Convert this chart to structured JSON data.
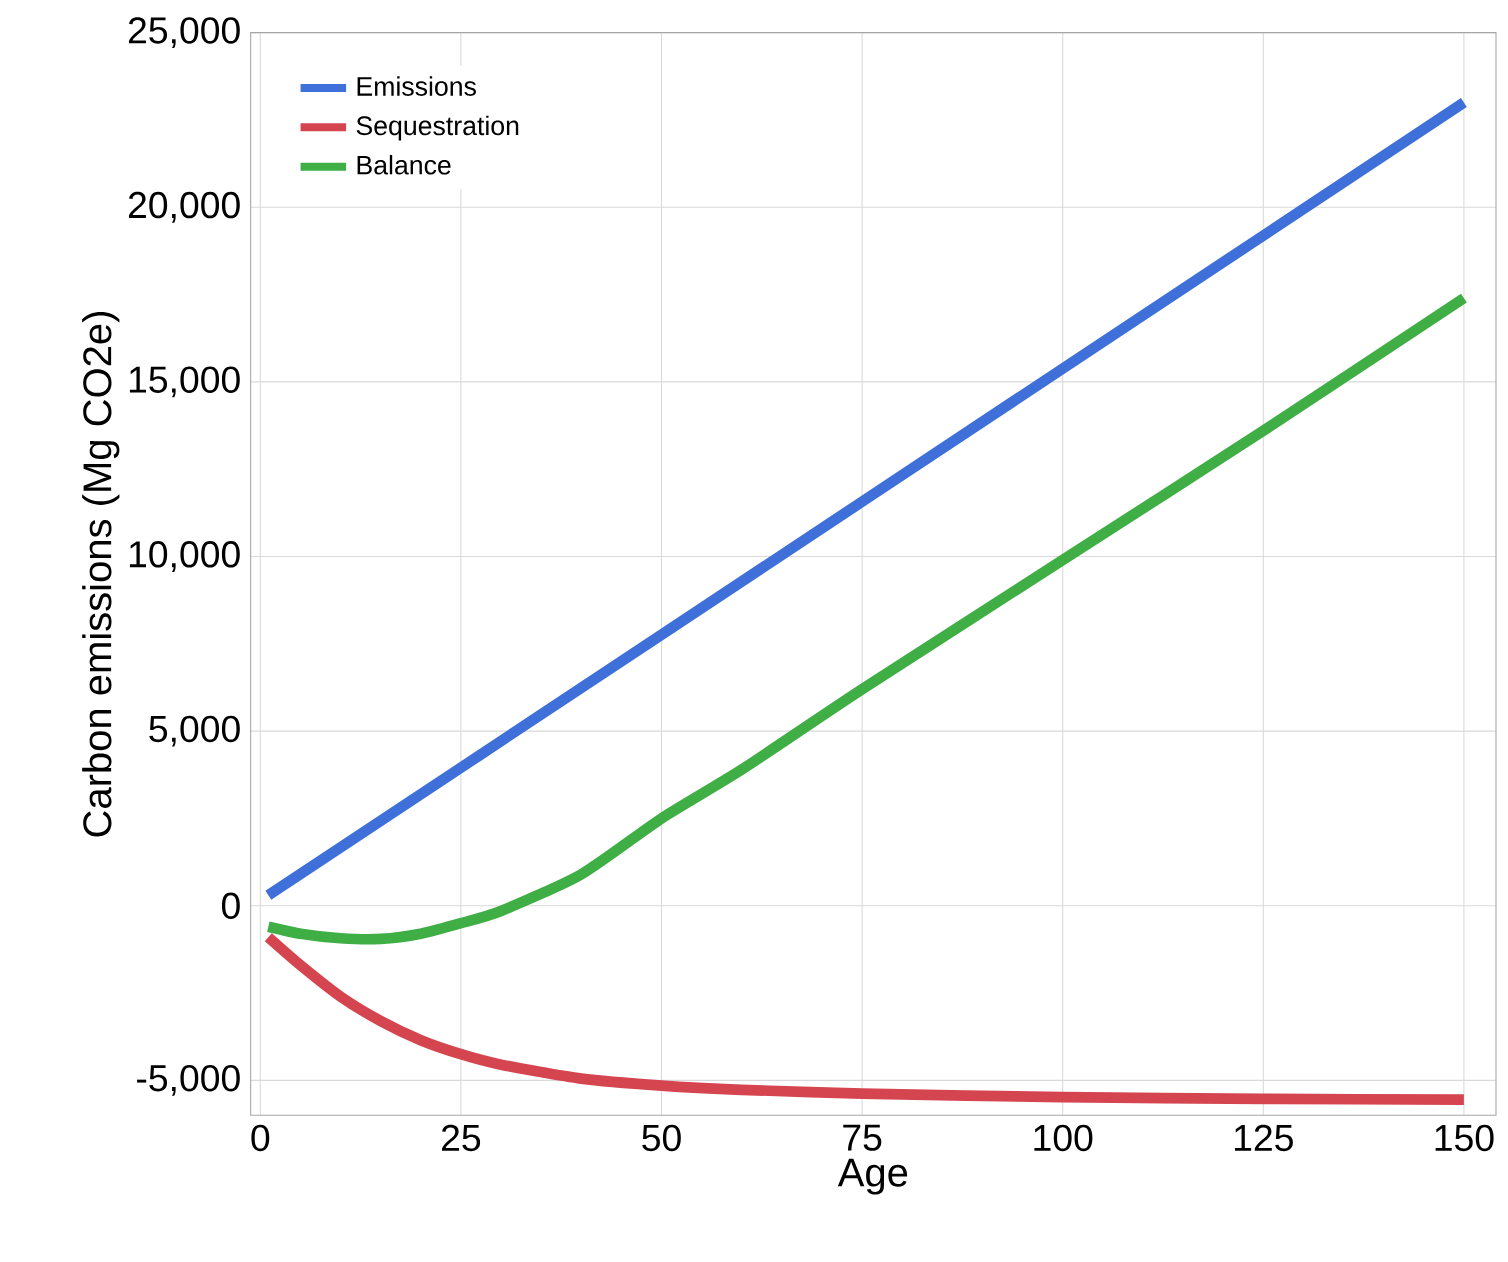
{
  "chart_data": {
    "type": "line",
    "xlabel": "Age",
    "ylabel": "Carbon emissions (Mg CO2e)",
    "xlim": [
      -1.2,
      154
    ],
    "ylim": [
      -6000,
      25000
    ],
    "xticks": [
      0,
      25,
      50,
      75,
      100,
      125,
      150
    ],
    "yticks": [
      {
        "value": -5000,
        "label": "-5,000"
      },
      0,
      {
        "value": 5000,
        "label": "5,000"
      },
      {
        "value": 10000,
        "label": "10,000"
      },
      {
        "value": 15000,
        "label": "15,000"
      },
      {
        "value": 20000,
        "label": "20,000"
      },
      {
        "value": 25000,
        "label": "25,000"
      }
    ],
    "grid": true,
    "legend": "top left",
    "line_style": "solid",
    "marker": "none",
    "series": [
      {
        "name": "Emissions",
        "color": "#3f6fd8",
        "x": [
          1,
          50,
          100,
          150
        ],
        "values": [
          300,
          7760,
          15380,
          23000
        ]
      },
      {
        "name": "Sequestration",
        "color": "#d5454f",
        "x": [
          1,
          5,
          10,
          15,
          20,
          25,
          30,
          40,
          50,
          60,
          75,
          100,
          125,
          150
        ],
        "values": [
          -900,
          -1700,
          -2600,
          -3300,
          -3850,
          -4250,
          -4550,
          -4950,
          -5150,
          -5270,
          -5380,
          -5480,
          -5530,
          -5550
        ]
      },
      {
        "name": "Balance",
        "color": "#3fae45",
        "x": [
          1,
          5,
          10,
          15,
          20,
          25,
          30,
          40,
          50,
          60,
          75,
          100,
          125,
          150
        ],
        "values": [
          -600,
          -800,
          -930,
          -950,
          -800,
          -500,
          -150,
          900,
          2500,
          3900,
          6200,
          9900,
          13600,
          17400
        ]
      }
    ]
  }
}
